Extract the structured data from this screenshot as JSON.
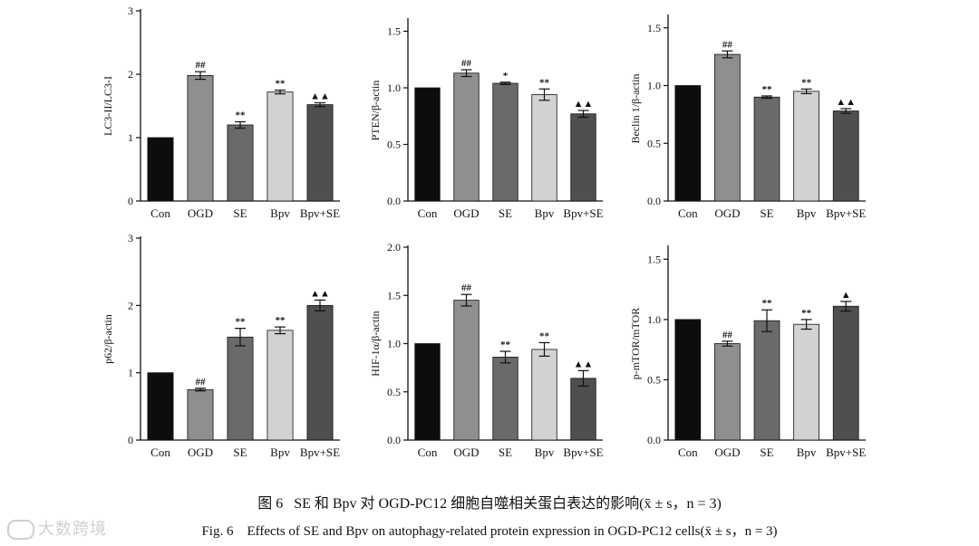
{
  "chart_data": [
    {
      "type": "bar",
      "ylabel": "LC3-II/LC3-I",
      "categories": [
        "Con",
        "OGD",
        "SE",
        "Bpv",
        "Bpv+SE"
      ],
      "values": [
        1.0,
        1.98,
        1.2,
        1.72,
        1.52
      ],
      "errors": [
        0.0,
        0.06,
        0.05,
        0.03,
        0.03
      ],
      "marks": [
        "",
        "##",
        "**",
        "**",
        "▲▲"
      ],
      "ylim": [
        0,
        3
      ],
      "yticks": [
        0,
        1,
        2,
        3
      ],
      "ytick_labels": [
        "0",
        "1",
        "2",
        "3"
      ]
    },
    {
      "type": "bar",
      "ylabel": "PTEN/β-actin",
      "categories": [
        "Con",
        "OGD",
        "SE",
        "Bpv",
        "Bpv+SE"
      ],
      "values": [
        1.0,
        1.13,
        1.04,
        0.94,
        0.77
      ],
      "errors": [
        0.0,
        0.03,
        0.01,
        0.05,
        0.03
      ],
      "marks": [
        "",
        "##",
        "*",
        "**",
        "▲▲"
      ],
      "ylim": [
        0,
        1.6
      ],
      "yticks": [
        0,
        0.5,
        1.0,
        1.5
      ],
      "ytick_labels": [
        "0.0",
        "0.5",
        "1.0",
        "1.5"
      ]
    },
    {
      "type": "bar",
      "ylabel": "Beclin 1/β-actin",
      "categories": [
        "Con",
        "OGD",
        "SE",
        "Bpv",
        "Bpv+SE"
      ],
      "values": [
        1.0,
        1.27,
        0.9,
        0.95,
        0.78
      ],
      "errors": [
        0.0,
        0.03,
        0.01,
        0.02,
        0.02
      ],
      "marks": [
        "",
        "##",
        "**",
        "**",
        "▲▲"
      ],
      "ylim": [
        0,
        1.6
      ],
      "yticks": [
        0,
        0.5,
        1.0,
        1.5
      ],
      "ytick_labels": [
        "0.0",
        "0.5",
        "1.0",
        "1.5"
      ]
    },
    {
      "type": "bar",
      "ylabel": "p62/β-actin",
      "categories": [
        "Con",
        "OGD",
        "SE",
        "Bpv",
        "Bpv+SE"
      ],
      "values": [
        1.0,
        0.75,
        1.53,
        1.63,
        2.0
      ],
      "errors": [
        0.0,
        0.02,
        0.13,
        0.05,
        0.08
      ],
      "marks": [
        "",
        "##",
        "**",
        "**",
        "▲▲"
      ],
      "ylim": [
        0,
        3
      ],
      "yticks": [
        0,
        1,
        2,
        3
      ],
      "ytick_labels": [
        "0",
        "1",
        "2",
        "3"
      ]
    },
    {
      "type": "bar",
      "ylabel": "HIF-1α/β-actin",
      "categories": [
        "Con",
        "OGD",
        "SE",
        "Bpv",
        "Bpv+SE"
      ],
      "values": [
        1.0,
        1.45,
        0.86,
        0.94,
        0.64
      ],
      "errors": [
        0.0,
        0.06,
        0.06,
        0.07,
        0.08
      ],
      "marks": [
        "",
        "##",
        "**",
        "**",
        "▲▲"
      ],
      "ylim": [
        0,
        2.0
      ],
      "yticks": [
        0,
        0.5,
        1.0,
        1.5,
        2.0
      ],
      "ytick_labels": [
        "0.0",
        "0.5",
        "1.0",
        "1.5",
        "2.0"
      ]
    },
    {
      "type": "bar",
      "ylabel": "p-mTOR/mTOR",
      "categories": [
        "Con",
        "OGD",
        "SE",
        "Bpv",
        "Bpv+SE"
      ],
      "values": [
        1.0,
        0.8,
        0.99,
        0.96,
        1.11
      ],
      "errors": [
        0.0,
        0.02,
        0.09,
        0.04,
        0.04
      ],
      "marks": [
        "",
        "##",
        "**",
        "**",
        "▲"
      ],
      "ylim": [
        0,
        1.6
      ],
      "yticks": [
        0,
        0.5,
        1.0,
        1.5
      ],
      "ytick_labels": [
        "0.0",
        "0.5",
        "1.0",
        "1.5"
      ]
    }
  ],
  "colors": {
    "bars": [
      "#0d0d0d",
      "#8f8f8f",
      "#6a6a6a",
      "#d2d2d2",
      "#4f4f4f"
    ],
    "axis": "#111111"
  },
  "caption": {
    "cn_lead": "图 6",
    "cn_text": "SE 和 Bpv 对 OGD-PC12 细胞自噬相关蛋白表达的影响(x̄ ± s，n = 3)",
    "en_lead": "Fig. 6",
    "en_text": "Effects of SE and Bpv on autophagy-related protein expression in OGD-PC12 cells(x̄ ± s，n = 3)"
  },
  "watermark": "大数跨境"
}
